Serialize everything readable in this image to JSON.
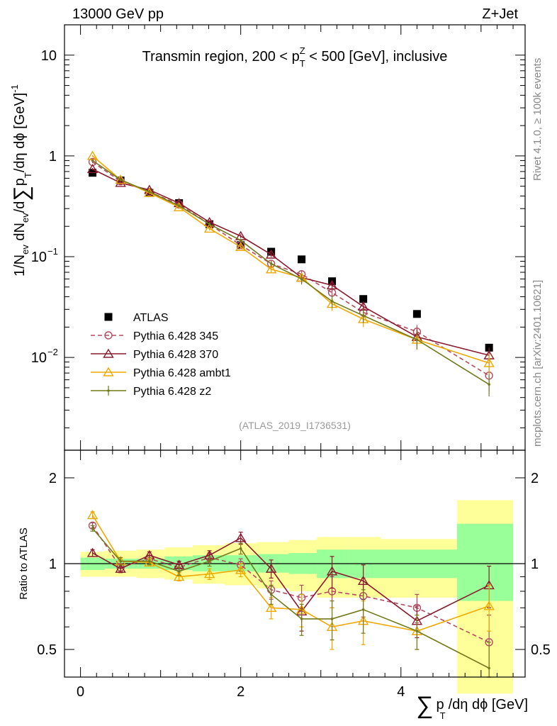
{
  "header": {
    "energy": "13000 GeV pp",
    "process": "Z+Jet"
  },
  "side_labels": {
    "rivet": "Rivet 4.1.0, ≥ 100k events",
    "mcplots": "mcplots.cern.ch [arXiv:2401.10621]"
  },
  "main_title": "Transmin region, 200 < p_T^Z < 500 [GeV], inclusive",
  "title_parts": {
    "pre": "Transmin region, 200 < p",
    "sup": "Z",
    "sub": "T",
    "post": " < 500 [GeV], inclusive"
  },
  "analysis_tag": "(ATLAS_2019_I1736531)",
  "ylabel_main": "1/N_ev dN_ev/d∑ p_T /dη dϕ [GeV]^-1",
  "ylabel_ratio": "Ratio to ATLAS",
  "xlabel": "∑ p_T /dη dϕ [GeV]",
  "xlabel_parts": {
    "sum": "∑",
    "p": "p",
    "sub": "T",
    "rest": "/dη dϕ [GeV]"
  },
  "ylabel_main_parts": {
    "a": "1/N",
    "a_sub": "ev",
    "b": " dN",
    "b_sub": "ev",
    "c": "/d",
    "sum": "∑",
    "d": "p",
    "d_sub": "T",
    "e": "/dη dϕ  [GeV]",
    "e_sup": "-1"
  },
  "main_ticks": [
    {
      "v": 10,
      "label": "10"
    },
    {
      "v": 1,
      "label": "1"
    },
    {
      "v": 0.1,
      "label": "10",
      "sup": "−1"
    },
    {
      "v": 0.01,
      "label": "10",
      "sup": "−2"
    }
  ],
  "ratio_ticks": [
    {
      "v": 2,
      "label": "2"
    },
    {
      "v": 1,
      "label": "1"
    },
    {
      "v": 0.5,
      "label": "0.5"
    }
  ],
  "x_ticks": [
    {
      "v": 0,
      "label": "0"
    },
    {
      "v": 2,
      "label": "2"
    },
    {
      "v": 4,
      "label": "4"
    }
  ],
  "legend": [
    {
      "name": "ATLAS",
      "color": "#000000",
      "marker": "square",
      "dash": false
    },
    {
      "name": "Pythia 6.428 345",
      "color": "#b54b5f",
      "marker": "circle",
      "dash": true
    },
    {
      "name": "Pythia 6.428 370",
      "color": "#8b1a2e",
      "marker": "triangle",
      "dash": false
    },
    {
      "name": "Pythia 6.428 ambt1",
      "color": "#f0a800",
      "marker": "triangle",
      "dash": false
    },
    {
      "name": "Pythia 6.428 z2",
      "color": "#737a1c",
      "marker": "dot",
      "dash": false
    }
  ],
  "chart_data": [
    {
      "type": "scatter",
      "panel": "main",
      "title": "Transmin region, 200 < p_T^Z < 500 [GeV], inclusive",
      "xlabel": "∑ p_T /dη dϕ [GeV]",
      "ylabel": "1/N_ev dN_ev/d∑ p_T /dη dϕ [GeV]^-1",
      "yscale": "log",
      "xlim": [
        -0.2,
        5.55
      ],
      "ylim": [
        0.0012,
        20
      ],
      "x": [
        0.15,
        0.5,
        0.86,
        1.23,
        1.61,
        2.0,
        2.38,
        2.76,
        3.14,
        3.53,
        4.2,
        5.1
      ],
      "series": [
        {
          "name": "ATLAS",
          "values": [
            0.68,
            0.57,
            0.43,
            0.34,
            0.21,
            0.13,
            0.112,
            0.094,
            0.057,
            0.038,
            0.027,
            0.0125
          ]
        },
        {
          "name": "Pythia 6.428 345",
          "values": [
            0.87,
            0.56,
            0.44,
            0.33,
            0.21,
            0.13,
            0.085,
            0.067,
            0.044,
            0.028,
            0.018,
            0.0066
          ],
          "errors": [
            0.02,
            0.02,
            0.015,
            0.012,
            0.008,
            0.006,
            0.005,
            0.006,
            0.005,
            0.004,
            0.003,
            0.002
          ]
        },
        {
          "name": "Pythia 6.428 370",
          "values": [
            0.74,
            0.54,
            0.46,
            0.34,
            0.22,
            0.16,
            0.105,
            0.062,
            0.052,
            0.032,
            0.016,
            0.0105
          ],
          "errors": [
            0.02,
            0.02,
            0.015,
            0.012,
            0.008,
            0.007,
            0.006,
            0.007,
            0.006,
            0.004,
            0.003,
            0.002
          ]
        },
        {
          "name": "Pythia 6.428 ambt1",
          "values": [
            1.0,
            0.58,
            0.43,
            0.31,
            0.19,
            0.125,
            0.075,
            0.062,
            0.034,
            0.024,
            0.015,
            0.0088
          ],
          "errors": [
            0.02,
            0.02,
            0.015,
            0.012,
            0.008,
            0.006,
            0.005,
            0.006,
            0.005,
            0.004,
            0.003,
            0.002
          ]
        },
        {
          "name": "Pythia 6.428 z2",
          "values": [
            0.9,
            0.58,
            0.44,
            0.32,
            0.21,
            0.145,
            0.085,
            0.06,
            0.036,
            0.026,
            0.015,
            0.0054
          ],
          "errors": [
            0.02,
            0.02,
            0.015,
            0.012,
            0.008,
            0.006,
            0.006,
            0.007,
            0.005,
            0.004,
            0.003,
            0.0013
          ]
        }
      ]
    },
    {
      "type": "scatter",
      "panel": "ratio",
      "ylabel": "Ratio to ATLAS",
      "xlabel": "∑ p_T /dη dϕ [GeV]",
      "yscale": "log",
      "xlim": [
        -0.2,
        5.55
      ],
      "ylim": [
        0.4,
        2.5
      ],
      "x": [
        0.15,
        0.5,
        0.86,
        1.23,
        1.61,
        2.0,
        2.38,
        2.76,
        3.14,
        3.53,
        4.2,
        5.1
      ],
      "bands": {
        "edges": [
          0.0,
          0.3,
          0.7,
          1.05,
          1.4,
          1.8,
          2.2,
          2.6,
          2.95,
          3.35,
          3.75,
          4.7,
          5.4
        ],
        "stat_low": [
          0.95,
          0.96,
          0.96,
          0.95,
          0.94,
          0.94,
          0.93,
          0.92,
          0.89,
          0.89,
          0.89,
          0.74
        ],
        "stat_high": [
          1.05,
          1.04,
          1.04,
          1.06,
          1.07,
          1.07,
          1.08,
          1.09,
          1.12,
          1.12,
          1.12,
          1.38
        ],
        "total_low": [
          0.9,
          0.9,
          0.89,
          0.88,
          0.85,
          0.84,
          0.82,
          0.8,
          0.76,
          0.76,
          0.76,
          0.35
        ],
        "total_high": [
          1.1,
          1.11,
          1.12,
          1.14,
          1.16,
          1.18,
          1.19,
          1.21,
          1.24,
          1.24,
          1.22,
          1.67
        ]
      },
      "series": [
        {
          "name": "Pythia 6.428 345",
          "values": [
            1.36,
            0.97,
            1.04,
            0.97,
            1.05,
            0.99,
            0.81,
            0.76,
            0.8,
            0.77,
            0.7,
            0.53
          ],
          "errors": [
            0.03,
            0.03,
            0.03,
            0.03,
            0.04,
            0.05,
            0.06,
            0.08,
            0.1,
            0.12,
            0.08,
            0.13
          ]
        },
        {
          "name": "Pythia 6.428 370",
          "values": [
            1.09,
            0.96,
            1.07,
            0.99,
            1.07,
            1.23,
            0.96,
            0.68,
            0.94,
            0.87,
            0.63,
            0.84
          ],
          "errors": [
            0.03,
            0.03,
            0.03,
            0.03,
            0.04,
            0.06,
            0.07,
            0.1,
            0.12,
            0.12,
            0.08,
            0.14
          ]
        },
        {
          "name": "Pythia 6.428 ambt1",
          "values": [
            1.48,
            1.02,
            1.01,
            0.9,
            0.92,
            0.95,
            0.7,
            0.69,
            0.6,
            0.63,
            0.58,
            0.71
          ],
          "errors": [
            0.04,
            0.03,
            0.03,
            0.03,
            0.04,
            0.05,
            0.06,
            0.09,
            0.1,
            0.11,
            0.08,
            0.13
          ]
        },
        {
          "name": "Pythia 6.428 z2",
          "values": [
            1.33,
            1.02,
            1.02,
            0.94,
            1.02,
            1.13,
            0.78,
            0.64,
            0.64,
            0.69,
            0.58,
            0.43
          ],
          "errors": [
            0.03,
            0.03,
            0.03,
            0.03,
            0.04,
            0.05,
            0.06,
            0.08,
            0.1,
            0.12,
            0.08,
            0.1
          ]
        }
      ]
    }
  ]
}
